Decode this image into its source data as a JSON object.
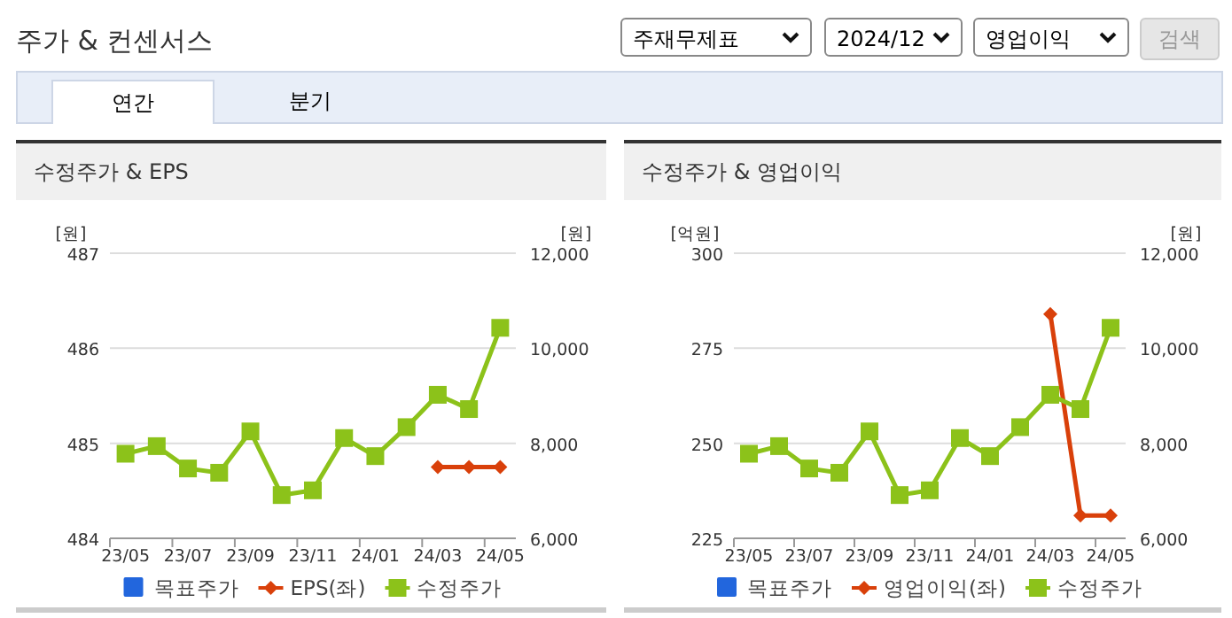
{
  "chart_data": [
    {
      "type": "line",
      "title": "수정주가 & EPS",
      "ylabel": "[원]",
      "y2label": "[원]",
      "annotations": [
        "주가 & 컨센서스",
        "주재무제표",
        "2024/12",
        "영업이익",
        "검색",
        "연간",
        "분기"
      ],
      "categories": [
        "23/05",
        null,
        "23/07",
        null,
        "23/09",
        null,
        "23/11",
        null,
        "24/01",
        null,
        "24/03",
        null,
        "24/05"
      ],
      "series": [
        {
          "name": "목표주가",
          "color": "#2266dd",
          "marker": "square",
          "values": [
            null,
            null,
            null,
            null,
            null,
            null,
            null,
            null,
            null,
            null,
            null,
            null,
            null
          ]
        },
        {
          "name": "EPS(좌)",
          "color": "#d9400a",
          "marker": "diamond",
          "values": [
            null,
            null,
            null,
            null,
            null,
            null,
            null,
            null,
            null,
            null,
            484.75,
            484.75,
            484.75
          ]
        },
        {
          "name": "수정주가",
          "color": "#8cc21a",
          "marker": "square",
          "axis": "y2",
          "values": [
            7780,
            7940,
            7470,
            7380,
            8250,
            6910,
            7010,
            8110,
            7730,
            8340,
            9020,
            8720,
            10430
          ]
        }
      ],
      "ylim": [
        484,
        487
      ],
      "yticks": [
        484,
        485,
        486,
        487
      ],
      "y2lim": [
        6000,
        12000
      ],
      "y2ticks": [
        {
          "value": 6000,
          "label": "6,000"
        },
        {
          "value": 8000,
          "label": "8,000"
        },
        {
          "value": 10000,
          "label": "10,000"
        },
        {
          "value": 12000,
          "label": "12,000"
        }
      ],
      "grid": "y",
      "legend": "bottom"
    },
    {
      "type": "line",
      "title": "수정주가 & 영업이익",
      "ylabel": "[억원]",
      "y2label": "[원]",
      "categories": [
        "23/05",
        null,
        "23/07",
        null,
        "23/09",
        null,
        "23/11",
        null,
        "24/01",
        null,
        "24/03",
        null,
        "24/05"
      ],
      "series": [
        {
          "name": "목표주가",
          "color": "#2266dd",
          "marker": "square",
          "values": [
            null,
            null,
            null,
            null,
            null,
            null,
            null,
            null,
            null,
            null,
            null,
            null,
            null
          ]
        },
        {
          "name": "영업이익(좌)",
          "color": "#d9400a",
          "marker": "diamond",
          "values": [
            null,
            null,
            null,
            null,
            null,
            null,
            null,
            null,
            null,
            null,
            284,
            231,
            231
          ]
        },
        {
          "name": "수정주가",
          "color": "#8cc21a",
          "marker": "square",
          "axis": "y2",
          "values": [
            7780,
            7940,
            7470,
            7380,
            8250,
            6910,
            7010,
            8110,
            7730,
            8340,
            9020,
            8720,
            10430
          ]
        }
      ],
      "ylim": [
        225,
        300
      ],
      "yticks": [
        225,
        250,
        275,
        300
      ],
      "y2lim": [
        6000,
        12000
      ],
      "y2ticks": [
        {
          "value": 6000,
          "label": "6,000"
        },
        {
          "value": 8000,
          "label": "8,000"
        },
        {
          "value": 10000,
          "label": "10,000"
        },
        {
          "value": 12000,
          "label": "12,000"
        }
      ],
      "grid": "y",
      "legend": "bottom"
    }
  ]
}
